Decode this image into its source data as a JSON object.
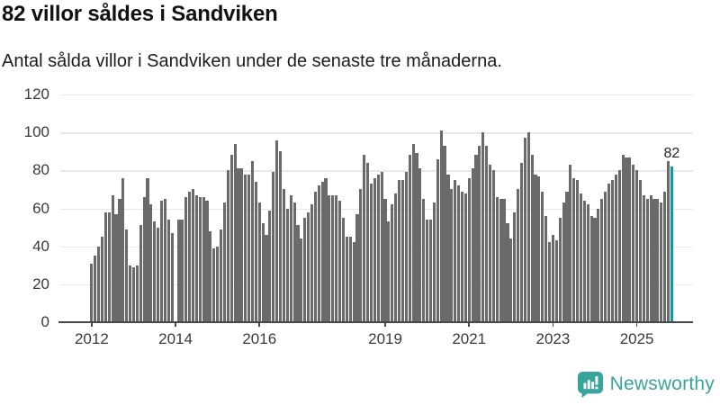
{
  "header": {
    "title": "82 villor såldes i Sandviken",
    "subtitle": "Antal sålda villor i Sandviken under de senaste tre månaderna."
  },
  "chart_data": {
    "type": "bar",
    "title": "82 villor såldes i Sandviken",
    "subtitle": "Antal sålda villor i Sandviken under de senaste tre månaderna.",
    "unit": "antal sålda villor (rullande 3 månader)",
    "period": "monthly",
    "start_month": "2012-01",
    "end_month": "2025-11",
    "ylim": [
      0,
      120
    ],
    "y_ticks": [
      0,
      20,
      40,
      60,
      80,
      100,
      120
    ],
    "grid": true,
    "x_tick_labels": [
      "2012",
      "2014",
      "2016",
      "2019",
      "2021",
      "2023",
      "2025"
    ],
    "x_tick_month_indices": [
      0,
      24,
      48,
      84,
      108,
      132,
      156
    ],
    "values": [
      31,
      35,
      40,
      45,
      58,
      58,
      67,
      57,
      65,
      76,
      49,
      30,
      29,
      30,
      51,
      66,
      76,
      62,
      53,
      50,
      64,
      65,
      54,
      47,
      null,
      54,
      54,
      66,
      69,
      70,
      67,
      66,
      66,
      64,
      48,
      39,
      40,
      49,
      63,
      80,
      88,
      94,
      81,
      81,
      78,
      78,
      85,
      74,
      63,
      52,
      46,
      59,
      79,
      96,
      90,
      70,
      60,
      67,
      63,
      51,
      44,
      55,
      58,
      62,
      69,
      72,
      74,
      76,
      67,
      67,
      67,
      64,
      55,
      45,
      45,
      42,
      57,
      70,
      88,
      84,
      73,
      76,
      78,
      79,
      65,
      53,
      62,
      68,
      75,
      75,
      79,
      88,
      94,
      89,
      81,
      65,
      54,
      54,
      63,
      86,
      101,
      93,
      78,
      70,
      75,
      72,
      69,
      68,
      76,
      81,
      88,
      93,
      100,
      93,
      83,
      80,
      66,
      65,
      65,
      52,
      44,
      58,
      70,
      84,
      97,
      100,
      88,
      78,
      77,
      69,
      56,
      42,
      46,
      43,
      55,
      63,
      69,
      83,
      76,
      75,
      68,
      64,
      62,
      56,
      55,
      60,
      65,
      69,
      73,
      75,
      78,
      80,
      88,
      87,
      87,
      83,
      80,
      75,
      67,
      65,
      67,
      65,
      65,
      63,
      69,
      85,
      82
    ],
    "highlight": {
      "index": 166,
      "value": 82,
      "label": "82"
    },
    "colors": {
      "bar": "#6A6A6D",
      "highlight": "#00A0A0",
      "grid": "#E8E8E8",
      "axis": "#48484A",
      "tick_text": "#3A3A3A",
      "annotation_text": "#222222",
      "brand": "#38A59C"
    },
    "legend": null
  },
  "footer": {
    "brand": "Newsworthy"
  }
}
